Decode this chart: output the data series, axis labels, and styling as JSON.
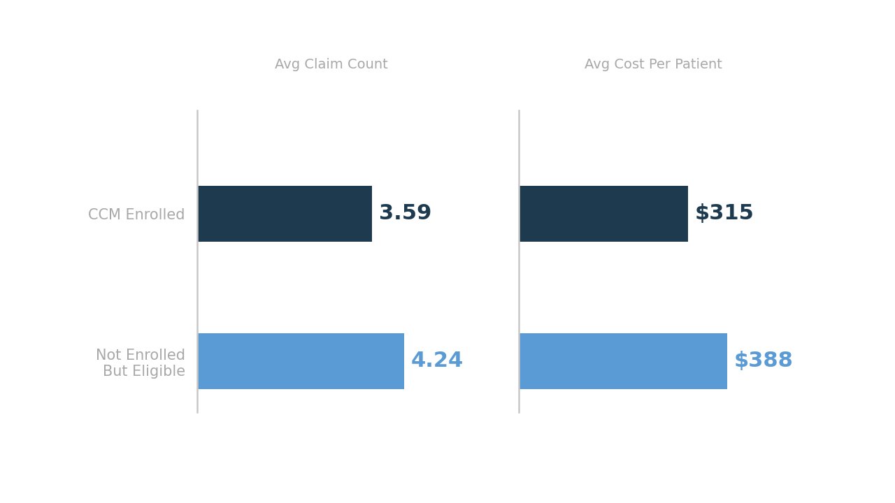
{
  "background_color": "#ffffff",
  "chart1_title": "Avg Claim Count",
  "chart2_title": "Avg Cost Per Patient",
  "categories": [
    "CCM Enrolled",
    "Not Enrolled\nBut Eligible"
  ],
  "chart1_values": [
    3.59,
    4.24
  ],
  "chart2_values": [
    315,
    388
  ],
  "chart1_labels": [
    "3.59",
    "4.24"
  ],
  "chart2_labels": [
    "$315",
    "$388"
  ],
  "color_dark": "#1e3a4f",
  "color_light": "#5b9bd5",
  "label_color_dark": "#1e3a4f",
  "label_color_light": "#5b9bd5",
  "axis_line_color": "#c8c8c8",
  "title_color": "#a8a8a8",
  "category_label_color": "#a8a8a8",
  "title_fontsize": 14,
  "category_fontsize": 15,
  "value_fontsize": 22,
  "bar_height": 0.38,
  "chart1_max": 5.5,
  "chart2_max": 500,
  "ylim_min": -0.35,
  "ylim_max": 1.7
}
